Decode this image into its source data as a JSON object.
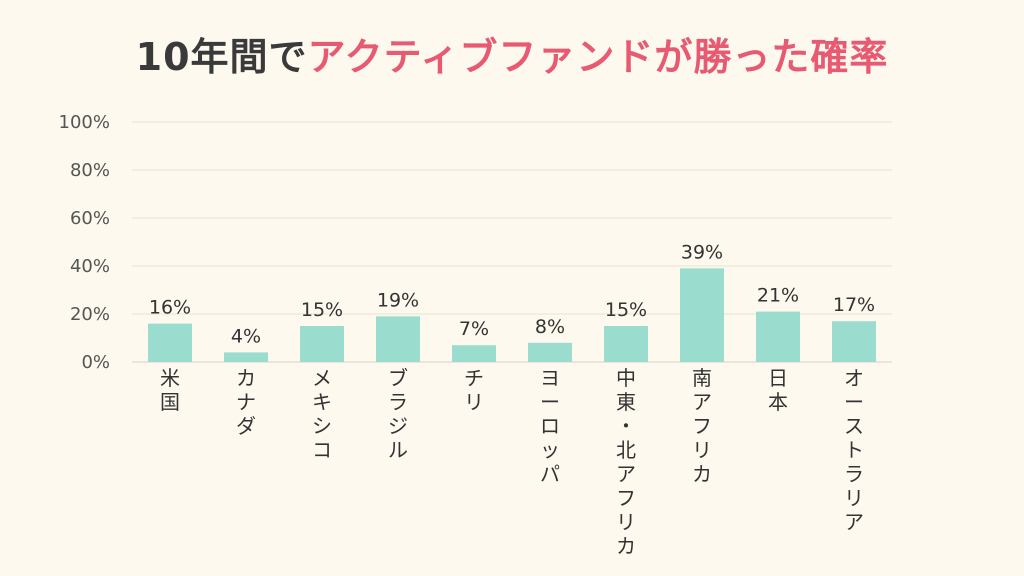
{
  "title": {
    "part1": "10年間で",
    "part2": "アクティブファンドが勝った確率"
  },
  "colors": {
    "background": "#fdf9ef",
    "bar": "#9adccd",
    "title_dark": "#3a3a3a",
    "title_accent": "#e75a72",
    "grid": "#e9e4d6"
  },
  "chart_data": {
    "type": "bar",
    "title": "10年間でアクティブファンドが勝った確率",
    "xlabel": "",
    "ylabel": "",
    "ylim": [
      0,
      100
    ],
    "yticks": [
      "0%",
      "20%",
      "40%",
      "60%",
      "80%",
      "100%"
    ],
    "grid": true,
    "legend": "none",
    "categories": [
      "米国",
      "カナダ",
      "メキシコ",
      "ブラジル",
      "チリ",
      "ヨーロッパ",
      "中東・北アフリカ",
      "南アフリカ",
      "日本",
      "オーストラリア"
    ],
    "values": [
      16,
      4,
      15,
      19,
      7,
      8,
      15,
      39,
      21,
      17
    ],
    "data_labels": [
      "16%",
      "4%",
      "15%",
      "19%",
      "7%",
      "8%",
      "15%",
      "39%",
      "21%",
      "17%"
    ]
  }
}
